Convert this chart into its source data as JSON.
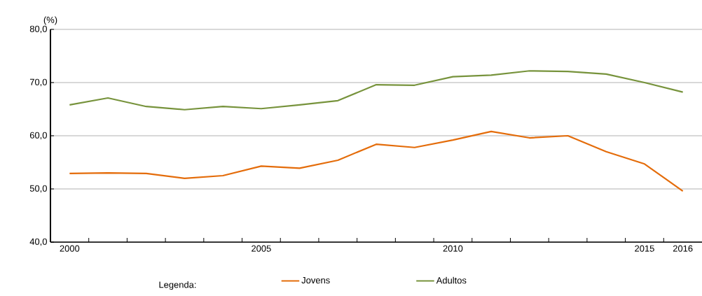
{
  "chart_data": {
    "type": "line",
    "ylabel": "(%)",
    "legend_title": "Legenda:",
    "categories": [
      "2000",
      null,
      null,
      null,
      null,
      "2005",
      null,
      null,
      null,
      null,
      "2010",
      null,
      null,
      null,
      null,
      "2015",
      "2016"
    ],
    "series": [
      {
        "name": "Jovens",
        "color": "#e46c0a",
        "values": [
          52.9,
          53.0,
          52.9,
          52.0,
          52.5,
          54.3,
          53.9,
          55.4,
          58.4,
          57.8,
          59.2,
          60.8,
          59.6,
          60.0,
          57.0,
          54.7,
          49.6
        ]
      },
      {
        "name": "Adultos",
        "color": "#77933c",
        "values": [
          65.8,
          67.1,
          65.5,
          64.9,
          65.5,
          65.1,
          65.8,
          66.6,
          69.6,
          69.5,
          71.1,
          71.4,
          72.2,
          72.1,
          71.6,
          70.0,
          68.2
        ]
      }
    ],
    "ylim": [
      40,
      80
    ],
    "yticks": [
      {
        "value": 40,
        "label": "40,0"
      },
      {
        "value": 50,
        "label": "50,0"
      },
      {
        "value": 60,
        "label": "60,0"
      },
      {
        "value": 70,
        "label": "70,0"
      },
      {
        "value": 80,
        "label": "80,0"
      }
    ],
    "grid": "y",
    "legend": "bottom",
    "marker": "none",
    "line_style": "solid"
  }
}
